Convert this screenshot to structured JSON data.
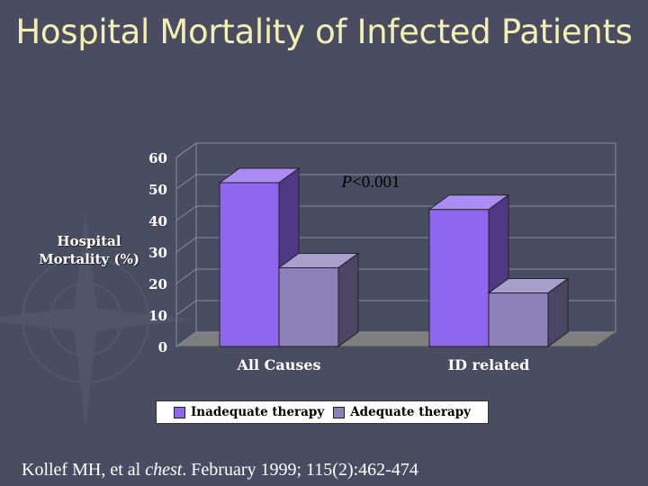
{
  "slide": {
    "title": "Hospital Mortality of Infected Patients",
    "citation": {
      "prefix": "Kollef MH, et al ",
      "journal": "chest",
      "suffix": ". February 1999; 115(2):462-474"
    }
  },
  "colors": {
    "background": "#4a4d61",
    "title": "#f3efb0",
    "inadequate": "#8f66f0",
    "adequate": "#8b80b8"
  },
  "chart_data": {
    "type": "bar",
    "title": "",
    "xlabel": "",
    "ylabel": "Hospital Mortality (%)",
    "ylim": [
      0,
      60
    ],
    "yticks": [
      0,
      10,
      20,
      30,
      40,
      50,
      60
    ],
    "categories": [
      "All Causes",
      "ID related"
    ],
    "series": [
      {
        "name": "Inadequate therapy",
        "values": [
          52,
          43.5
        ]
      },
      {
        "name": "Adequate therapy",
        "values": [
          25,
          17
        ]
      }
    ],
    "annotation": "P<0.001",
    "legend_position": "bottom",
    "grid": true,
    "style": "3d"
  }
}
